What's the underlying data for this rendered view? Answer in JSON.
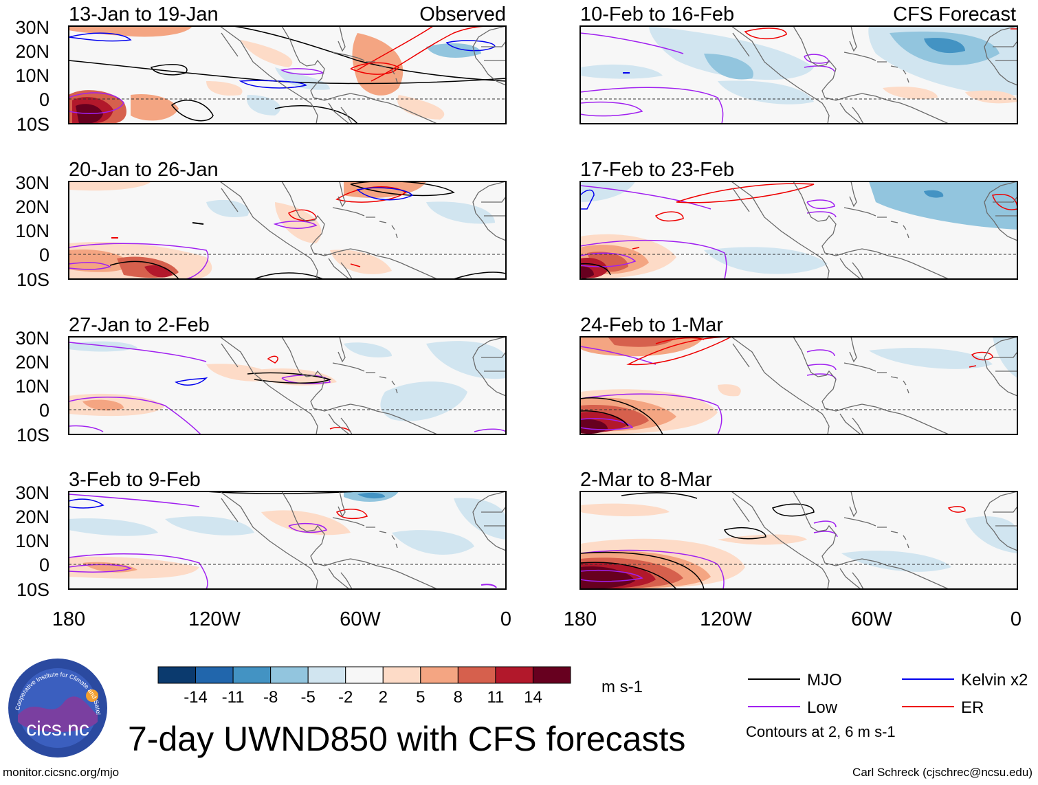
{
  "figure": {
    "title": "7-day UWND850 with CFS forecasts",
    "site_url": "monitor.cicsnc.org/mjo",
    "credit": "Carl Schreck (cjschrec@ncsu.edu)",
    "logo_text": "cics.nc",
    "logo_ring_text": "Cooperative Institute for Climate and Satellites",
    "units": "m s-1",
    "contour_note": "Contours at 2, 6 m s-1"
  },
  "column_labels": {
    "left": "Observed",
    "right": "CFS Forecast"
  },
  "colorbar": {
    "colors": [
      "#0b3a6e",
      "#2166ac",
      "#4393c3",
      "#92c5de",
      "#d1e5f0",
      "#f7f7f7",
      "#fddbc7",
      "#f4a582",
      "#d6604d",
      "#b2182b",
      "#67001f"
    ],
    "tick_labels": [
      "-14",
      "-11",
      "-8",
      "-5",
      "-2",
      "2",
      "5",
      "8",
      "11",
      "14"
    ]
  },
  "legend": [
    {
      "label": "MJO",
      "color": "#000000"
    },
    {
      "label": "Kelvin x2",
      "color": "#0000ee"
    },
    {
      "label": "Low",
      "color": "#a020f0"
    },
    {
      "label": "ER",
      "color": "#ee0000"
    }
  ],
  "axes": {
    "lat_labels": [
      "30N",
      "20N",
      "10N",
      "0",
      "10S"
    ],
    "lon_labels": [
      "180",
      "120W",
      "60W",
      "0"
    ]
  },
  "panels": [
    {
      "period": "13-Jan to 19-Jan",
      "type": "observed"
    },
    {
      "period": "20-Jan to 26-Jan",
      "type": "observed"
    },
    {
      "period": "27-Jan to 2-Feb",
      "type": "observed"
    },
    {
      "period": "3-Feb to 9-Feb",
      "type": "observed"
    },
    {
      "period": "10-Feb to 16-Feb",
      "type": "forecast"
    },
    {
      "period": "17-Feb to 23-Feb",
      "type": "forecast"
    },
    {
      "period": "24-Feb to 1-Mar",
      "type": "forecast"
    },
    {
      "period": "2-Mar to 8-Mar",
      "type": "forecast"
    }
  ]
}
